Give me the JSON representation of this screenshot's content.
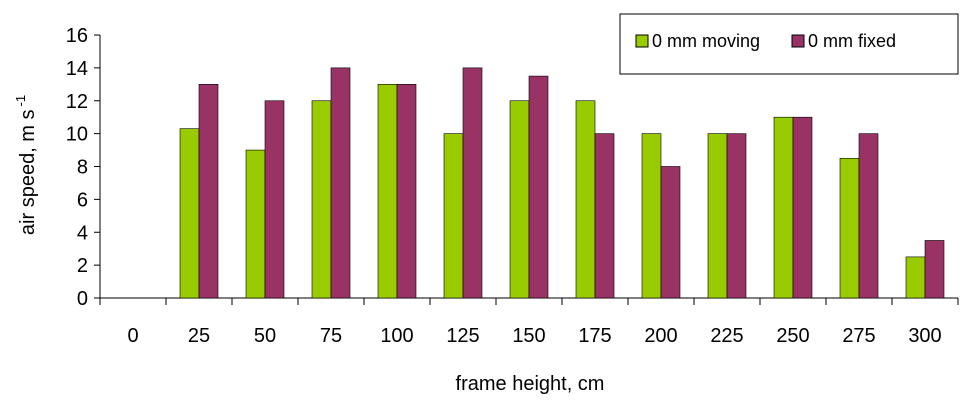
{
  "chart_data": {
    "type": "bar",
    "title": "",
    "xlabel": "frame height, cm",
    "ylabel_main": "air speed, m s",
    "ylabel_sup": "-1",
    "categories": [
      "0",
      "25",
      "50",
      "75",
      "100",
      "125",
      "150",
      "175",
      "200",
      "225",
      "250",
      "275",
      "300"
    ],
    "series": [
      {
        "name": "0 mm moving",
        "color": "#99cc00",
        "values": [
          0,
          10.3,
          9,
          12,
          13,
          10,
          12,
          12,
          10,
          10,
          11,
          8.5,
          2.5
        ]
      },
      {
        "name": "0 mm fixed",
        "color": "#993366",
        "values": [
          0,
          13,
          12,
          14,
          13,
          14,
          13.5,
          10,
          8,
          10,
          11,
          10,
          3.5
        ]
      }
    ],
    "ylim": [
      0,
      16
    ],
    "yticks": [
      "0",
      "2",
      "4",
      "6",
      "8",
      "10",
      "12",
      "14",
      "16"
    ],
    "grid": false,
    "legend_position": "top-right"
  }
}
